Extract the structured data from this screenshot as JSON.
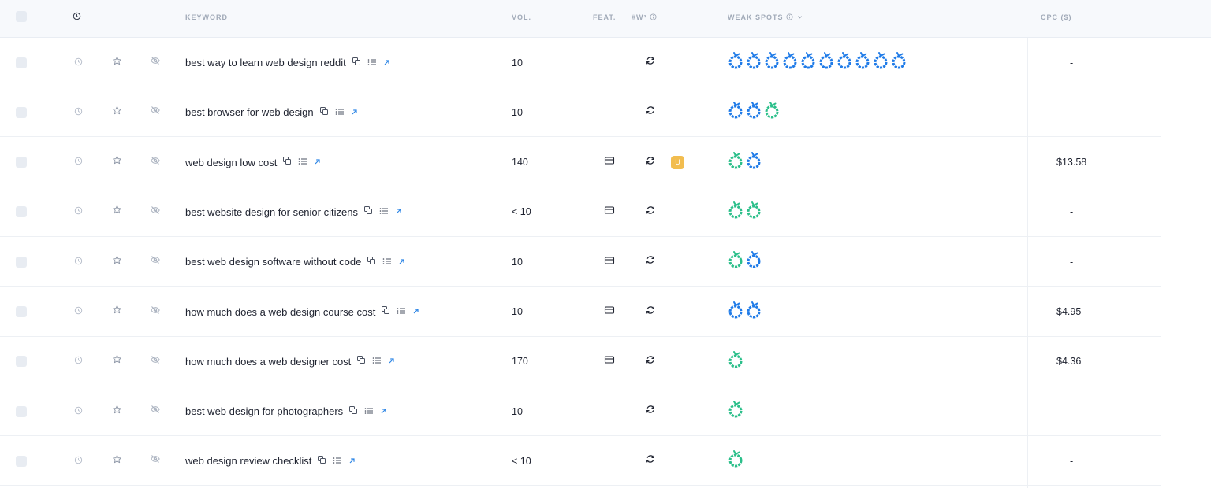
{
  "header": {
    "keyword_label": "KEYWORD",
    "vol_label": "VOL.",
    "feat_label": "FEAT.",
    "w3_label": "#W³",
    "weak_spots_label": "WEAK SPOTS",
    "cpc_label": "CPC ($)"
  },
  "colors": {
    "blue_spot": "#1f7be8",
    "green_spot": "#2bbf8a",
    "badge": "#f2bd4f",
    "link": "#2e86e6"
  },
  "icons": [
    "clock-icon",
    "star-icon",
    "eye-off-icon",
    "copy-icon",
    "list-icon",
    "external-link-icon",
    "sync-icon",
    "feature-card-icon",
    "info-icon",
    "chevron-down-icon",
    "weak-spot-icon"
  ],
  "rows": [
    {
      "keyword": "best way to learn web design reddit",
      "vol": "10",
      "feat": false,
      "badge": "",
      "spots": [
        "blue",
        "blue",
        "blue",
        "blue",
        "blue",
        "blue",
        "blue",
        "blue",
        "blue",
        "blue"
      ],
      "cpc": "-"
    },
    {
      "keyword": "best browser for web design",
      "vol": "10",
      "feat": false,
      "badge": "",
      "spots": [
        "blue",
        "blue",
        "green"
      ],
      "cpc": "-"
    },
    {
      "keyword": "web design low cost",
      "vol": "140",
      "feat": true,
      "badge": "U",
      "spots": [
        "green",
        "blue"
      ],
      "cpc": "$13.58"
    },
    {
      "keyword": "best website design for senior citizens",
      "vol": "< 10",
      "feat": true,
      "badge": "",
      "spots": [
        "green",
        "green"
      ],
      "cpc": "-"
    },
    {
      "keyword": "best web design software without code",
      "vol": "10",
      "feat": true,
      "badge": "",
      "spots": [
        "green",
        "blue"
      ],
      "cpc": "-"
    },
    {
      "keyword": "how much does a web design course cost",
      "vol": "10",
      "feat": true,
      "badge": "",
      "spots": [
        "blue",
        "blue"
      ],
      "cpc": "$4.95"
    },
    {
      "keyword": "how much does a web designer cost",
      "vol": "170",
      "feat": true,
      "badge": "",
      "spots": [
        "green"
      ],
      "cpc": "$4.36"
    },
    {
      "keyword": "best web design for photographers",
      "vol": "10",
      "feat": false,
      "badge": "",
      "spots": [
        "green"
      ],
      "cpc": "-"
    },
    {
      "keyword": "web design review checklist",
      "vol": "< 10",
      "feat": false,
      "badge": "",
      "spots": [
        "green"
      ],
      "cpc": "-"
    }
  ]
}
